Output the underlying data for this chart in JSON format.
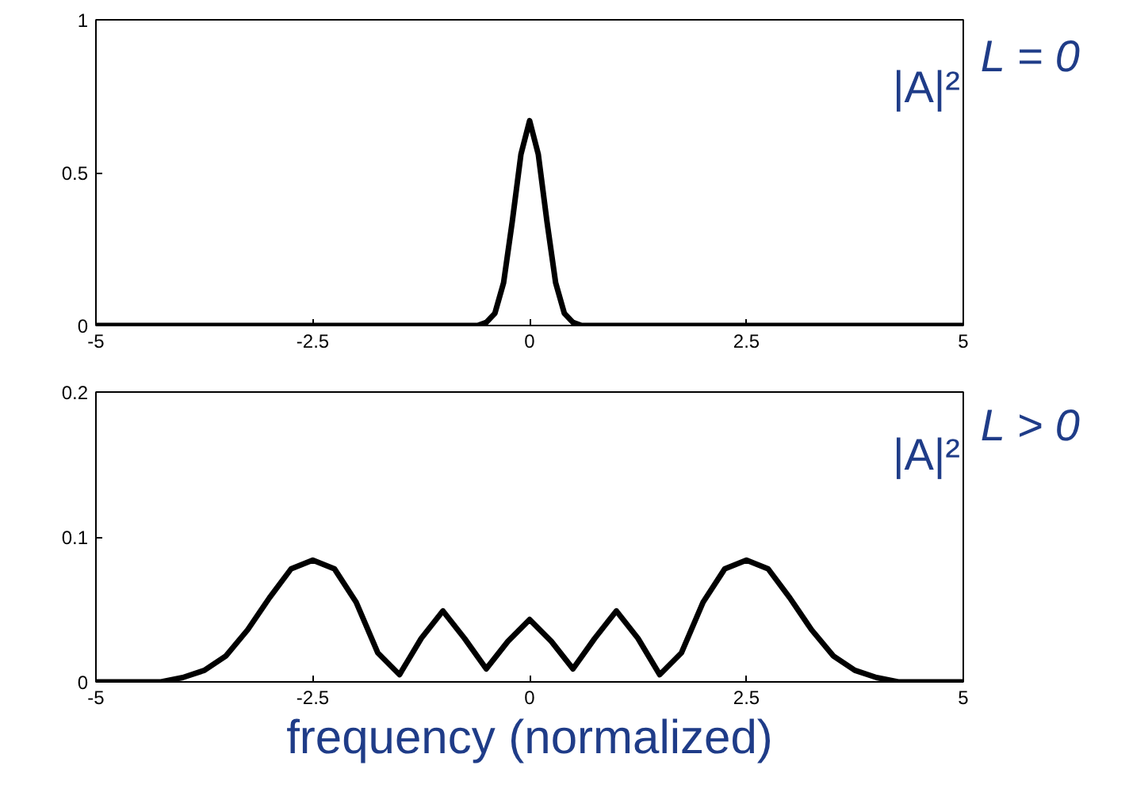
{
  "chart_data": [
    {
      "type": "line",
      "annotations": [
        "|A|²",
        "L = 0"
      ],
      "xlim": [
        -5,
        5
      ],
      "xticks": [
        -5,
        -2.5,
        0,
        2.5,
        5
      ],
      "ylim": [
        0,
        1
      ],
      "yticks": [
        0,
        0.5,
        1
      ],
      "grid": false,
      "series": [
        {
          "color": "#000000",
          "x": [
            -5,
            -1.5,
            -0.6,
            -0.5,
            -0.4,
            -0.3,
            -0.2,
            -0.1,
            0,
            0.1,
            0.2,
            0.3,
            0.4,
            0.5,
            0.6,
            1.5,
            5
          ],
          "values": [
            0,
            0,
            0,
            0.01,
            0.04,
            0.14,
            0.34,
            0.56,
            0.67,
            0.56,
            0.34,
            0.14,
            0.04,
            0.01,
            0,
            0,
            0
          ]
        }
      ]
    },
    {
      "type": "line",
      "annotations": [
        "|A|²",
        "L > 0"
      ],
      "xlabel": "frequency (normalized)",
      "xlim": [
        -5,
        5
      ],
      "xticks": [
        -5,
        -2.5,
        0,
        2.5,
        5
      ],
      "ylim": [
        0,
        0.2
      ],
      "yticks": [
        0,
        0.1,
        0.2
      ],
      "grid": false,
      "series": [
        {
          "color": "#000000",
          "x": [
            -5,
            -4.75,
            -4.5,
            -4.25,
            -4,
            -3.75,
            -3.5,
            -3.25,
            -3,
            -2.75,
            -2.5,
            -2.25,
            -2,
            -1.75,
            -1.5,
            -1.25,
            -1,
            -0.75,
            -0.5,
            -0.25,
            0,
            0.25,
            0.5,
            0.75,
            1,
            1.25,
            1.5,
            1.75,
            2,
            2.25,
            2.5,
            2.75,
            3,
            3.25,
            3.5,
            3.75,
            4,
            4.25,
            4.5,
            4.75,
            5
          ],
          "values": [
            0,
            0,
            0,
            0,
            0.003,
            0.008,
            0.018,
            0.036,
            0.058,
            0.078,
            0.084,
            0.078,
            0.055,
            0.02,
            0.005,
            0.03,
            0.049,
            0.03,
            0.009,
            0.028,
            0.043,
            0.028,
            0.009,
            0.03,
            0.049,
            0.03,
            0.005,
            0.02,
            0.055,
            0.078,
            0.084,
            0.078,
            0.058,
            0.036,
            0.018,
            0.008,
            0.003,
            0,
            0,
            0,
            0
          ]
        }
      ]
    }
  ]
}
